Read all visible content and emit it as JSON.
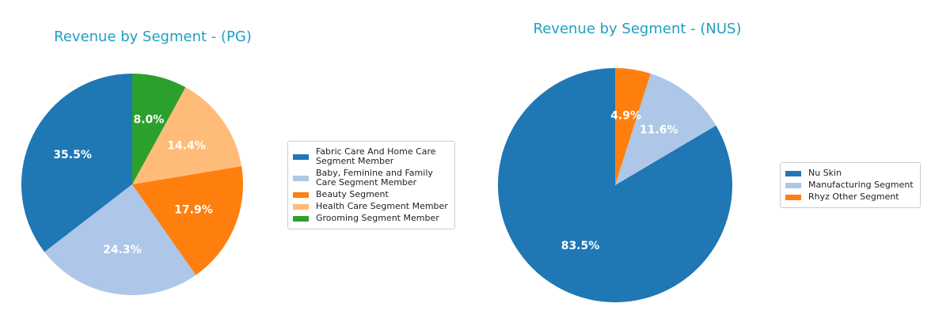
{
  "chart_data": [
    {
      "type": "pie",
      "title": "Revenue by Segment - (PG)",
      "categories": [
        "Fabric Care And Home Care\nSegment Member",
        "Baby, Feminine and Family\nCare Segment Member",
        "Beauty Segment",
        "Health Care Segment Member",
        "Grooming Segment Member"
      ],
      "values": [
        35.5,
        24.3,
        17.9,
        14.4,
        8.0
      ],
      "value_labels": [
        "35.5%",
        "24.3%",
        "17.9%",
        "14.4%",
        "8.0%"
      ],
      "colors": [
        "#1f77b4",
        "#aec7e8",
        "#ff7f0e",
        "#ffbb78",
        "#2ca02c"
      ],
      "startangle": 90,
      "counterclock": true,
      "legend": "right"
    },
    {
      "type": "pie",
      "title": "Revenue by Segment - (NUS)",
      "categories": [
        "Nu Skin",
        "Manufacturing Segment",
        "Rhyz Other Segment"
      ],
      "values": [
        83.5,
        11.6,
        4.9
      ],
      "value_labels": [
        "83.5%",
        "11.6%",
        "4.9%"
      ],
      "colors": [
        "#1f77b4",
        "#aec7e8",
        "#ff7f0e"
      ],
      "startangle": 90,
      "counterclock": true,
      "legend": "right"
    }
  ]
}
